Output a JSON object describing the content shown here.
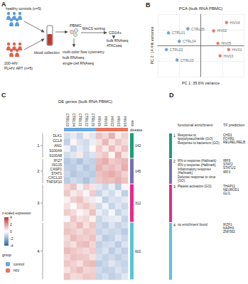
{
  "panel_a": {
    "label": "A",
    "controls": "healthy controls (n=5)",
    "hiv_study": "200-HIV",
    "hiv_group": "PLHIV ART (n=5)",
    "step_blood": "blood collection",
    "pbmc": "PBMC",
    "pbmc_assays": [
      "multi-color flow cytometry",
      "bulk RNAseq",
      "single-cell RNAseq"
    ],
    "sorting": "MACS sorting",
    "cd14": "CD14+",
    "cd14_assays": [
      "bulk RNAseq",
      "ATACseq"
    ],
    "controls_color": "#5b9bd5",
    "hiv_color": "#e0614a"
  },
  "chart_data": [
    {
      "label": "B",
      "type": "scatter",
      "title": "PCA (bulk RNA PBMC)",
      "x_label": "PC 1: 35.6% variance",
      "y_label": "PC 2: 14.4% variance",
      "xlim": [
        -40,
        40
      ],
      "xticks": [
        -40,
        -20,
        0,
        20,
        40
      ],
      "ylim": [
        -30,
        30
      ],
      "yticks": [
        -30,
        -15,
        0,
        15,
        30
      ],
      "grid": true,
      "tick_labels": false,
      "series": [
        {
          "color": "#4a8fcc",
          "x": [
            -30,
            -32,
            -22,
            -20,
            -12
          ],
          "values": [
            12,
            -4,
            -14,
            4,
            16
          ],
          "point_labels": [
            "CTRL01",
            "CTRL02",
            "CTRL03",
            "CTRL04",
            "CTRL05"
          ]
        },
        {
          "color": "#e0614a",
          "x": [
            26,
            12,
            18,
            24,
            16
          ],
          "values": [
            -4,
            14,
            -10,
            22,
            2
          ],
          "point_labels": [
            "HIV01",
            "HIV02",
            "HIV03",
            "HIV04",
            "HIV05"
          ]
        }
      ]
    },
    {
      "label": "C",
      "type": "heatmap",
      "title": "DE genes (bulk RNA PBMC)",
      "columns": [
        "CTRL03",
        "CTRL04",
        "CTRL01",
        "CTRL02",
        "CTRL05",
        "HIV05",
        "HIV01",
        "HIV02",
        "HIV03",
        "HIV04"
      ],
      "column_groups": [
        "control",
        "control",
        "control",
        "control",
        "control",
        "HIV",
        "HIV",
        "HIV",
        "HIV",
        "HIV"
      ],
      "annotation_title": "disease",
      "size_title": "size",
      "legend_title": "group",
      "series": [
        {
          "name": "control",
          "color": "#6aa7dc"
        },
        {
          "name": "HIV",
          "color": "#e8735a"
        }
      ],
      "colorbar": {
        "title": "z-scaled expression",
        "range": [
          -4,
          4
        ],
        "ticks": [
          4,
          2,
          0,
          -2,
          -4
        ]
      },
      "clusters": [
        {
          "id": "1",
          "size": 142,
          "color": "#1b9e77",
          "genes": [
            "DLK1",
            "CCL8",
            "ANG",
            "S100A9",
            "S100A8"
          ],
          "rows": [
            [
              -0.8,
              -0.5,
              -1.0,
              0.3,
              -0.6,
              1.2,
              0.8,
              1.5,
              0.4,
              0.9
            ],
            [
              -1.2,
              0.2,
              -0.7,
              -0.9,
              -0.4,
              0.6,
              1.4,
              0.5,
              1.1,
              0.7
            ],
            [
              -0.3,
              -1.1,
              -0.5,
              -0.8,
              0.1,
              1.0,
              0.4,
              1.3,
              0.6,
              1.2
            ],
            [
              -0.9,
              -0.6,
              0.4,
              -1.0,
              -0.7,
              0.8,
              1.1,
              0.2,
              1.5,
              0.5
            ]
          ]
        },
        {
          "id": "2",
          "size": 145,
          "color": "#7570b3",
          "genes": [
            "IFI27",
            "ISG15",
            "CASP1",
            "STAT1",
            "CXCL10",
            "TNFSF10"
          ],
          "rows": [
            [
              -1.4,
              -1.1,
              -1.5,
              -1.0,
              -1.2,
              1.3,
              1.6,
              1.0,
              1.2,
              1.4
            ],
            [
              -1.2,
              -1.3,
              -0.9,
              -1.4,
              -1.1,
              1.5,
              1.1,
              1.3,
              1.0,
              1.6
            ],
            [
              -1.0,
              -1.4,
              -1.2,
              -1.1,
              -1.3,
              1.2,
              1.4,
              1.6,
              1.3,
              0.9
            ],
            [
              -1.3,
              -0.9,
              -1.1,
              -1.5,
              -1.0,
              1.1,
              1.3,
              1.2,
              1.5,
              1.2
            ]
          ]
        },
        {
          "id": "3",
          "size": 312,
          "color": "#e7298a",
          "genes": [],
          "rows": [
            [
              0.8,
              1.2,
              -0.3,
              0.9,
              0.5,
              -0.6,
              -1.0,
              -0.4,
              -1.3,
              0.2
            ],
            [
              1.1,
              0.4,
              0.7,
              -0.2,
              1.0,
              -1.1,
              -0.5,
              -0.9,
              -0.3,
              -1.2
            ],
            [
              0.3,
              0.9,
              1.2,
              0.6,
              -0.4,
              -0.2,
              -1.2,
              -0.7,
              -0.8,
              -0.5
            ],
            [
              0.6,
              -0.1,
              0.8,
              1.1,
              0.7,
              -0.9,
              -0.3,
              -1.1,
              -0.6,
              -1.0
            ],
            [
              1.0,
              0.7,
              0.2,
              0.5,
              1.2,
              -0.4,
              -0.8,
              -0.2,
              -1.1,
              -0.7
            ],
            [
              -0.2,
              1.1,
              0.6,
              0.8,
              0.3,
              -1.0,
              -0.6,
              -0.5,
              -0.4,
              -1.1
            ]
          ]
        },
        {
          "id": "4",
          "size": 602,
          "color": "#5bc4d6",
          "genes": [],
          "rows": [
            [
              1.0,
              0.8,
              1.3,
              0.6,
              1.1,
              -0.9,
              -1.2,
              -0.7,
              -1.1,
              -0.8
            ],
            [
              1.2,
              1.0,
              0.7,
              1.1,
              0.9,
              -1.1,
              -0.8,
              -1.0,
              -0.9,
              -1.3
            ],
            [
              0.7,
              1.3,
              1.0,
              0.9,
              1.2,
              -0.7,
              -1.3,
              -1.1,
              -0.6,
              -1.0
            ],
            [
              0.9,
              0.6,
              1.2,
              1.3,
              0.8,
              -1.2,
              -0.9,
              -0.8,
              -1.3,
              -0.7
            ],
            [
              1.3,
              1.1,
              0.9,
              0.7,
              1.0,
              -1.0,
              -0.7,
              -1.3,
              -0.8,
              -1.2
            ],
            [
              0.8,
              1.2,
              1.1,
              1.0,
              0.6,
              -0.8,
              -1.1,
              -0.9,
              -1.2,
              -0.9
            ],
            [
              1.1,
              0.9,
              0.6,
              1.2,
              1.3,
              -1.3,
              -1.0,
              -0.6,
              -0.9,
              -1.1
            ],
            [
              0.6,
              1.0,
              1.3,
              0.8,
              0.9,
              -0.9,
              -1.2,
              -1.1,
              -0.7,
              -1.0
            ],
            [
              1.2,
              0.7,
              0.8,
              1.1,
              1.0,
              -1.1,
              -0.8,
              -1.2,
              -1.0,
              -0.6
            ]
          ]
        }
      ]
    }
  ],
  "panel_d": {
    "label": "D",
    "headers": [
      "functional enrichment",
      "TF prediction"
    ],
    "rows": [
      {
        "cluster": "1",
        "functional": [
          "Response to lipopolysaccharide (GO)",
          "Response to bacterium (GO)"
        ],
        "tf": [
          "CHD1",
          "FOXR2",
          "RELREL/RELB"
        ]
      },
      {
        "cluster": "2",
        "functional": [
          "IFN-α response (Hallmark)",
          "IFN-γ response (Hallmark)",
          "Inflammatory response (Hallmark)",
          "Defense response to virus (GO)"
        ],
        "tf": [
          "IRF9",
          "STAT2",
          "STAT1/2",
          "IRF3"
        ]
      },
      {
        "cluster": "3",
        "functional": [
          "Platelet activation (GO)"
        ],
        "tf": [
          "THAP11",
          "NEUROD1",
          "GLI1"
        ]
      },
      {
        "cluster": "4",
        "functional": [
          "no enrichment found"
        ],
        "tf": [
          "IKZF1",
          "NAPH3",
          "ZNF563"
        ]
      }
    ]
  }
}
